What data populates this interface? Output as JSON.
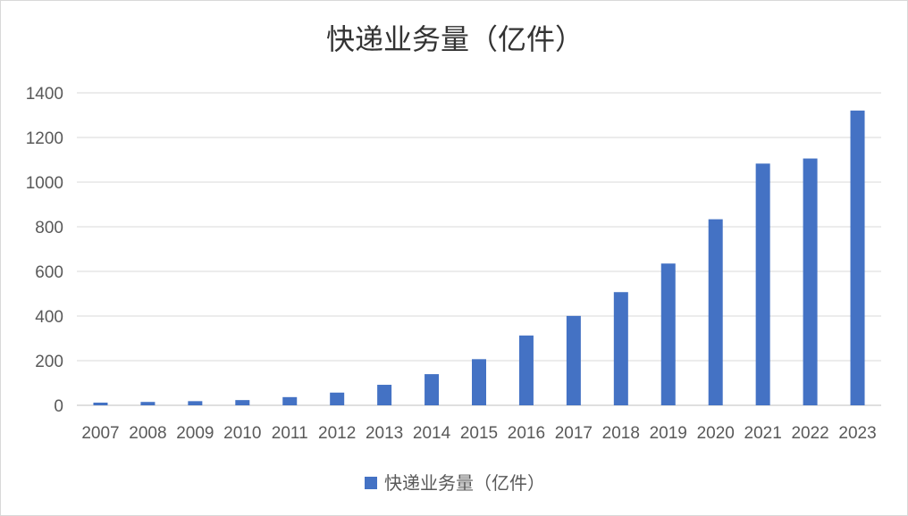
{
  "chart_data": {
    "type": "bar",
    "title": "快递业务量（亿件）",
    "categories": [
      "2007",
      "2008",
      "2009",
      "2010",
      "2011",
      "2012",
      "2013",
      "2014",
      "2015",
      "2016",
      "2017",
      "2018",
      "2019",
      "2020",
      "2021",
      "2022",
      "2023"
    ],
    "series": [
      {
        "name": "快递业务量（亿件）",
        "values": [
          12.0,
          15.1,
          18.6,
          23.4,
          36.7,
          56.9,
          91.9,
          139.6,
          206.7,
          312.8,
          400.6,
          507.1,
          635.2,
          833.6,
          1083.0,
          1105.8,
          1320.7
        ],
        "color": "#4472c4"
      }
    ],
    "xlabel": "",
    "ylabel": "",
    "ylim": [
      0,
      1400
    ],
    "yticks": [
      0,
      200,
      400,
      600,
      800,
      1000,
      1200,
      1400
    ],
    "grid": true,
    "legend": "bottom"
  }
}
